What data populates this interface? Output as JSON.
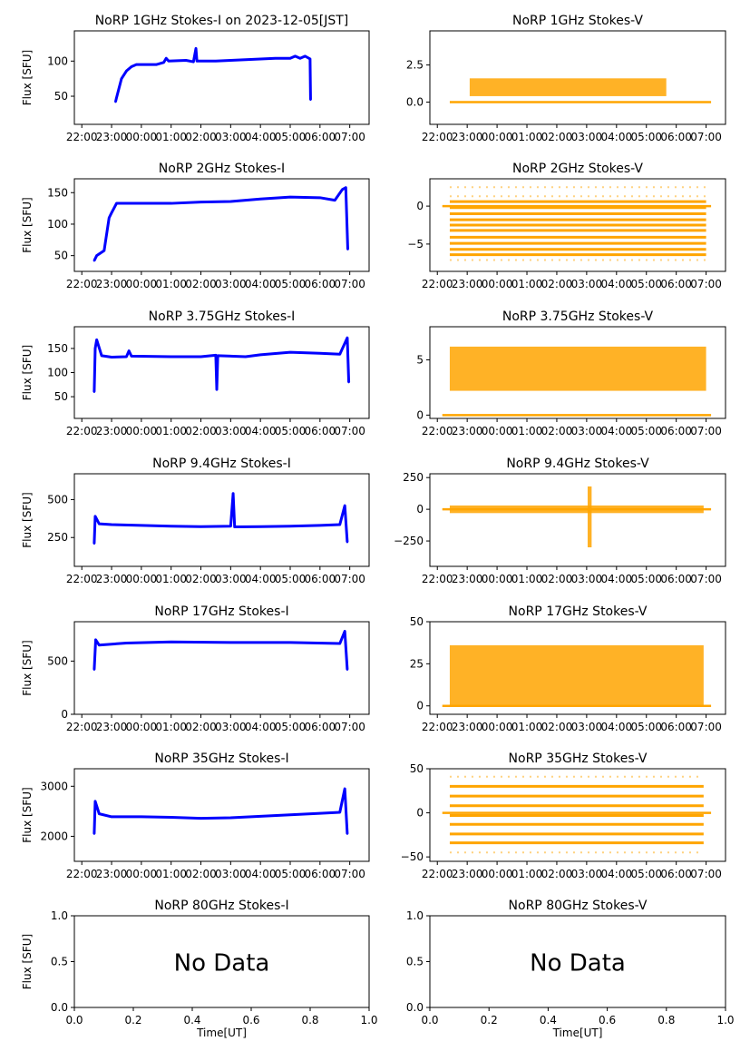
{
  "chart_data": [
    {
      "type": "line",
      "title": "NoRP 1GHz Stokes-I on 2023-12-05[JST]",
      "ylabel": "Flux [SFU]",
      "ylim": [
        10,
        143
      ],
      "yticks": [
        50,
        100
      ],
      "color": "#0000ff",
      "points": [
        [
          "23:08",
          42
        ],
        [
          "23:10",
          48
        ],
        [
          "23:20",
          75
        ],
        [
          "23:30",
          86
        ],
        [
          "23:40",
          92
        ],
        [
          "23:50",
          95
        ],
        [
          "00:30",
          95
        ],
        [
          "00:45",
          98
        ],
        [
          "00:50",
          104
        ],
        [
          "00:55",
          100
        ],
        [
          "01:30",
          101
        ],
        [
          "01:45",
          99
        ],
        [
          "01:50",
          118
        ],
        [
          "01:52",
          100
        ],
        [
          "02:30",
          100
        ],
        [
          "03:00",
          101
        ],
        [
          "03:30",
          102
        ],
        [
          "04:00",
          103
        ],
        [
          "04:30",
          104
        ],
        [
          "05:00",
          104
        ],
        [
          "05:10",
          107
        ],
        [
          "05:20",
          104
        ],
        [
          "05:30",
          107
        ],
        [
          "05:40",
          103
        ],
        [
          "05:41",
          45
        ]
      ]
    },
    {
      "type": "scatter",
      "title": "NoRP 1GHz Stokes-V",
      "ylim": [
        -1.5,
        4.8
      ],
      "yticks": [
        [
          0,
          "0.0"
        ],
        [
          2.5,
          "2.5"
        ]
      ],
      "color": "#ffa500",
      "zero_range": [
        "22:25",
        "07:10"
      ],
      "bands": [
        {
          "from": "23:05",
          "to": "05:40",
          "low": 0.4,
          "high": 1.6
        }
      ],
      "levels": []
    },
    {
      "type": "line",
      "title": "NoRP 2GHz Stokes-I",
      "ylabel": "Flux [SFU]",
      "ylim": [
        25,
        172
      ],
      "yticks": [
        50,
        100,
        150
      ],
      "color": "#0000ff",
      "points": [
        [
          "22:25",
          42
        ],
        [
          "22:30",
          50
        ],
        [
          "22:45",
          58
        ],
        [
          "22:55",
          110
        ],
        [
          "23:00",
          118
        ],
        [
          "23:10",
          133
        ],
        [
          "00:00",
          133
        ],
        [
          "01:00",
          133
        ],
        [
          "02:00",
          135
        ],
        [
          "03:00",
          136
        ],
        [
          "04:00",
          140
        ],
        [
          "05:00",
          143
        ],
        [
          "06:00",
          142
        ],
        [
          "06:30",
          138
        ],
        [
          "06:45",
          155
        ],
        [
          "06:52",
          158
        ],
        [
          "06:55",
          85
        ],
        [
          "06:56",
          60
        ]
      ]
    },
    {
      "type": "scatter",
      "title": "NoRP 2GHz Stokes-V",
      "ylim": [
        -8.6,
        3.6
      ],
      "yticks": [
        [
          0,
          "0"
        ],
        [
          -5,
          "−5"
        ]
      ],
      "color": "#ffa500",
      "zero_range": [
        "22:10",
        "07:10"
      ],
      "bands": [],
      "levels": [
        0.6,
        -0.2,
        -1.0,
        -1.8,
        -2.5,
        -3.2,
        -4.1,
        -4.9,
        -5.7,
        -6.4
      ],
      "sparse_levels": [
        2.5,
        1.3,
        -7.1
      ],
      "level_range": [
        "22:25",
        "07:00"
      ]
    },
    {
      "type": "line",
      "title": "NoRP 3.75GHz Stokes-I",
      "ylabel": "Flux [SFU]",
      "ylim": [
        5,
        195
      ],
      "yticks": [
        50,
        100,
        150
      ],
      "color": "#0000ff",
      "points": [
        [
          "22:25",
          60
        ],
        [
          "22:27",
          150
        ],
        [
          "22:30",
          168
        ],
        [
          "22:40",
          135
        ],
        [
          "23:00",
          132
        ],
        [
          "23:30",
          133
        ],
        [
          "23:35",
          145
        ],
        [
          "23:40",
          134
        ],
        [
          "01:00",
          133
        ],
        [
          "02:00",
          133
        ],
        [
          "02:30",
          136
        ],
        [
          "02:32",
          65
        ],
        [
          "02:34",
          135
        ],
        [
          "03:30",
          133
        ],
        [
          "04:00",
          137
        ],
        [
          "05:00",
          142
        ],
        [
          "06:00",
          140
        ],
        [
          "06:40",
          138
        ],
        [
          "06:55",
          172
        ],
        [
          "06:58",
          80
        ]
      ]
    },
    {
      "type": "scatter",
      "title": "NoRP 3.75GHz Stokes-V",
      "ylim": [
        -0.3,
        8
      ],
      "yticks": [
        [
          0,
          "0"
        ],
        [
          5,
          "5"
        ]
      ],
      "color": "#ffa500",
      "zero_range": [
        "22:10",
        "07:10"
      ],
      "bands": [
        {
          "from": "22:25",
          "to": "07:00",
          "low": 2.2,
          "high": 6.2
        }
      ],
      "levels": []
    },
    {
      "type": "line",
      "title": "NoRP 9.4GHz Stokes-I",
      "ylabel": "Flux [SFU]",
      "ylim": [
        60,
        670
      ],
      "yticks": [
        250,
        500
      ],
      "color": "#0000ff",
      "points": [
        [
          "22:25",
          210
        ],
        [
          "22:27",
          390
        ],
        [
          "22:35",
          340
        ],
        [
          "23:00",
          335
        ],
        [
          "00:00",
          330
        ],
        [
          "01:00",
          325
        ],
        [
          "02:00",
          322
        ],
        [
          "03:00",
          325
        ],
        [
          "03:05",
          540
        ],
        [
          "03:08",
          320
        ],
        [
          "04:00",
          322
        ],
        [
          "05:00",
          325
        ],
        [
          "06:00",
          330
        ],
        [
          "06:40",
          335
        ],
        [
          "06:50",
          460
        ],
        [
          "06:55",
          220
        ]
      ]
    },
    {
      "type": "scatter",
      "title": "NoRP 9.4GHz Stokes-V",
      "ylim": [
        -450,
        280
      ],
      "yticks": [
        [
          -250,
          "−250"
        ],
        [
          0,
          "0"
        ],
        [
          250,
          "250"
        ]
      ],
      "color": "#ffa500",
      "zero_range": [
        "22:10",
        "07:10"
      ],
      "bands": [
        {
          "from": "22:25",
          "to": "06:55",
          "low": -30,
          "high": 30
        },
        {
          "from": "03:02",
          "to": "03:10",
          "low": -300,
          "high": 180
        }
      ],
      "levels": []
    },
    {
      "type": "line",
      "title": "NoRP 17GHz Stokes-I",
      "ylabel": "Flux [SFU]",
      "ylim": [
        0,
        870
      ],
      "yticks": [
        0,
        500
      ],
      "color": "#0000ff",
      "points": [
        [
          "22:25",
          420
        ],
        [
          "22:28",
          700
        ],
        [
          "22:35",
          650
        ],
        [
          "23:30",
          670
        ],
        [
          "01:00",
          680
        ],
        [
          "03:00",
          675
        ],
        [
          "05:00",
          675
        ],
        [
          "06:40",
          665
        ],
        [
          "06:50",
          780
        ],
        [
          "06:55",
          420
        ]
      ]
    },
    {
      "type": "scatter",
      "title": "NoRP 17GHz Stokes-V",
      "ylim": [
        -5,
        50
      ],
      "yticks": [
        [
          0,
          "0"
        ],
        [
          25,
          "25"
        ],
        [
          50,
          "50"
        ]
      ],
      "color": "#ffa500",
      "zero_range": [
        "22:10",
        "07:10"
      ],
      "bands": [
        {
          "from": "22:25",
          "to": "06:55",
          "low": 0,
          "high": 36
        }
      ],
      "levels": []
    },
    {
      "type": "line",
      "title": "NoRP 35GHz Stokes-I",
      "ylabel": "Flux [SFU]",
      "ylim": [
        1500,
        3350
      ],
      "yticks": [
        2000,
        3000
      ],
      "color": "#0000ff",
      "points": [
        [
          "22:25",
          2050
        ],
        [
          "22:27",
          2700
        ],
        [
          "22:35",
          2450
        ],
        [
          "23:00",
          2390
        ],
        [
          "00:00",
          2390
        ],
        [
          "01:00",
          2380
        ],
        [
          "02:00",
          2360
        ],
        [
          "03:00",
          2370
        ],
        [
          "04:00",
          2400
        ],
        [
          "05:00",
          2430
        ],
        [
          "06:00",
          2460
        ],
        [
          "06:40",
          2480
        ],
        [
          "06:50",
          2950
        ],
        [
          "06:55",
          2050
        ]
      ]
    },
    {
      "type": "scatter",
      "title": "NoRP 35GHz Stokes-V",
      "ylim": [
        -55,
        50
      ],
      "yticks": [
        [
          -50,
          "−50"
        ],
        [
          0,
          "0"
        ],
        [
          50,
          "50"
        ]
      ],
      "color": "#ffa500",
      "zero_range": [
        "22:10",
        "07:10"
      ],
      "bands": [],
      "levels": [
        30,
        19,
        8,
        -3,
        -13,
        -24,
        -34
      ],
      "sparse_levels": [
        41,
        -45
      ],
      "level_range": [
        "22:25",
        "06:55"
      ]
    },
    {
      "type": "empty",
      "title": "NoRP 80GHz Stokes-I",
      "ylabel": "Flux [SFU]",
      "xlabel": "Time[UT]",
      "ylim": [
        0,
        1
      ],
      "xlim": [
        0,
        1
      ],
      "yticks": [
        [
          0,
          "0.0"
        ],
        [
          0.5,
          "0.5"
        ],
        [
          1,
          "1.0"
        ]
      ],
      "xticks": [
        "0.0",
        "0.2",
        "0.4",
        "0.6",
        "0.8",
        "1.0"
      ],
      "annotation": "No Data"
    },
    {
      "type": "empty",
      "title": "NoRP 80GHz Stokes-V",
      "xlabel": "Time[UT]",
      "ylim": [
        0,
        1
      ],
      "xlim": [
        0,
        1
      ],
      "yticks": [
        [
          0,
          "0.0"
        ],
        [
          0.5,
          "0.5"
        ],
        [
          1,
          "1.0"
        ]
      ],
      "xticks": [
        "0.0",
        "0.2",
        "0.4",
        "0.6",
        "0.8",
        "1.0"
      ],
      "annotation": "No Data"
    }
  ],
  "time_ticks": [
    "22:00",
    "23:00",
    "00:00",
    "01:00",
    "02:00",
    "03:00",
    "04:00",
    "05:00",
    "06:00",
    "07:00"
  ]
}
